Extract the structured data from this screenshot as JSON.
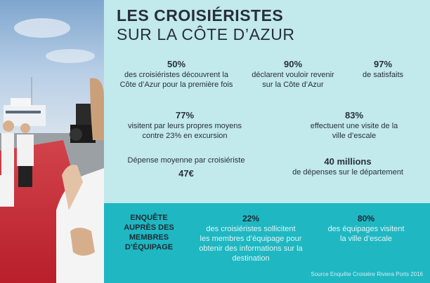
{
  "header": {
    "title_line1": "LES CROISIÉRISTES",
    "title_line2": "SUR LA CÔTE D’AZUR"
  },
  "stats": [
    {
      "value": "50%",
      "desc": "des croisiéristes découvrent la\nCôte d’Azur pour la première fois"
    },
    {
      "value": "90%",
      "desc": "déclarent vouloir revenir\nsur la Côte d’Azur"
    },
    {
      "value": "97%",
      "desc": "de satisfaits"
    },
    {
      "value": "77%",
      "desc": "visitent par leurs propres moyens\ncontre 23% en excursion"
    },
    {
      "value": "83%",
      "desc": "effectuent une visite de la\nville d’escale"
    },
    {
      "value": "47€",
      "desc": "Dépense moyenne par croisiériste"
    },
    {
      "value": "40 millions",
      "desc": "de dépenses sur le département"
    }
  ],
  "crew": {
    "title": "ENQUÊTE\nAUPRÈS DES\nMEMBRES\nD’ÉQUIPAGE",
    "stats": [
      {
        "value": "22%",
        "desc": "des croisiéristes sollicitent\nles membres d’équipage pour\nobtenir des informations sur la\ndestination"
      },
      {
        "value": "80%",
        "desc": "des équipages visitent\nla ville d’escale"
      }
    ]
  },
  "source": "Source Enquête Croisière Riviera Ports 2016"
}
